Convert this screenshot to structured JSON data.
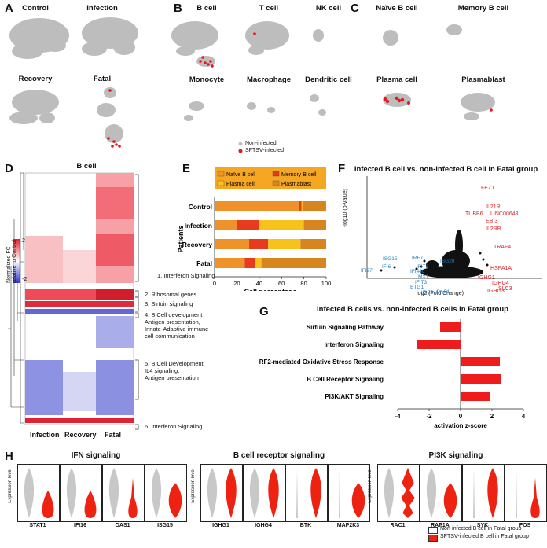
{
  "panels": {
    "a": {
      "label": "A",
      "titles": [
        "Control",
        "Infection",
        "Recovery",
        "Fatal"
      ]
    },
    "b": {
      "label": "B",
      "titles": [
        "B cell",
        "T cell",
        "NK cell",
        "Monocyte",
        "Macrophage",
        "Dendritic cell"
      ],
      "legend": [
        "Non-infected",
        "SFTSV-infected"
      ]
    },
    "c": {
      "label": "C",
      "titles": [
        "Naïve B cell",
        "Memory B cell",
        "Plasma cell",
        "Plasmablast"
      ]
    },
    "d": {
      "label": "D",
      "title": "B cell",
      "columns": [
        "Infection",
        "Recovery",
        "Fatal"
      ],
      "scale_label": "Normalized FC relative to Control",
      "scale_ticks": [
        "2",
        "-2"
      ],
      "clusters": [
        "1. Interferon Signaling",
        "2. Ribosomal genes",
        "3. Sirtuin signaling",
        "4. B Cell development",
        "Antigen presentation,",
        "Innate-Adaptive immune",
        "cell communication",
        "5. B Cell Development,",
        "IL4 signaling,",
        "Antigen presentation",
        "6. Interferon Signaling"
      ]
    },
    "e": {
      "label": "E",
      "xlabel": "Cell percentage",
      "ylabel": "Patients"
    },
    "f": {
      "label": "F",
      "title": "Infected B cell vs. non-infected B cell in Fatal group",
      "xlabel": "log2 (Fold Change)",
      "ylabel": "-log10 (p-value)",
      "up_genes": [
        "FEZ1",
        "IL21R",
        "TUBB6",
        "LINC00643",
        "EBI3",
        "IL2RB",
        "TRAF4",
        "HSPA1A",
        "IGHG1",
        "IGHG4",
        "SLC3",
        "IGHG3"
      ],
      "down_genes": [
        "ISG15",
        "IRF7",
        "ISG20",
        "IFI6",
        "IFIT3",
        "IFI44L",
        "IFI27",
        "MX1",
        "IFIT3",
        "BTG1",
        "IFI35",
        "OAS1"
      ]
    },
    "g": {
      "label": "G",
      "title": "Infected B cells vs. non-infected B cells in Fatal group",
      "xlabel": "activation z-score"
    },
    "h": {
      "label": "H",
      "groups": [
        {
          "title": "IFN signaling",
          "genes": [
            "STAT1",
            "IFI16",
            "OAS1",
            "ISG15"
          ]
        },
        {
          "title": "B cell receptor signaling",
          "genes": [
            "IGHG1",
            "IGHG4",
            "BTK",
            "MAP2K3"
          ]
        },
        {
          "title": "PI3K signaling",
          "genes": [
            "RAC1",
            "RAP1A",
            "SYK",
            "FOS"
          ]
        }
      ],
      "ylabel": "Expression level",
      "legend": [
        "Non-infected B cell in Fatal group",
        "SFTSV-infected B cell in Fatal group"
      ]
    }
  },
  "chart_data": [
    {
      "type": "bar",
      "stacked": true,
      "orientation": "horizontal",
      "categories": [
        "Control",
        "Infection",
        "Recovery",
        "Fatal"
      ],
      "series": [
        {
          "name": "Naïve B cell",
          "color": "#f0922a",
          "values": [
            76,
            20,
            31,
            27
          ]
        },
        {
          "name": "Memory B cell",
          "color": "#e83a1c",
          "values": [
            2,
            20,
            17,
            9
          ]
        },
        {
          "name": "Plasma cell",
          "color": "#f6c21b",
          "values": [
            1,
            40,
            29,
            6
          ]
        },
        {
          "name": "Plasmablast",
          "color": "#d7861f",
          "values": [
            21,
            20,
            23,
            58
          ]
        }
      ],
      "xlim": [
        0,
        100
      ],
      "xticks": [
        "0",
        "20",
        "40",
        "60",
        "80",
        "100"
      ],
      "xlabel": "Cell percentage",
      "ylabel": "Patients"
    },
    {
      "type": "bar",
      "orientation": "horizontal",
      "title": "Infected B cells vs. non-infected B cells in Fatal group",
      "categories": [
        "Sirtuin Signaling Pathway",
        "Interferon Signaling",
        "NRF2-mediated Oxidative Stress Response",
        "B Cell Receptor Signaling",
        "PI3K/AKT Signaling"
      ],
      "values": [
        -1.3,
        -2.8,
        2.5,
        2.6,
        1.9
      ],
      "xlim": [
        -4,
        4
      ],
      "xticks": [
        "-4",
        "-2",
        "0",
        "2",
        "4"
      ],
      "xlabel": "activation z-score",
      "color": "#ee1c1c"
    }
  ]
}
